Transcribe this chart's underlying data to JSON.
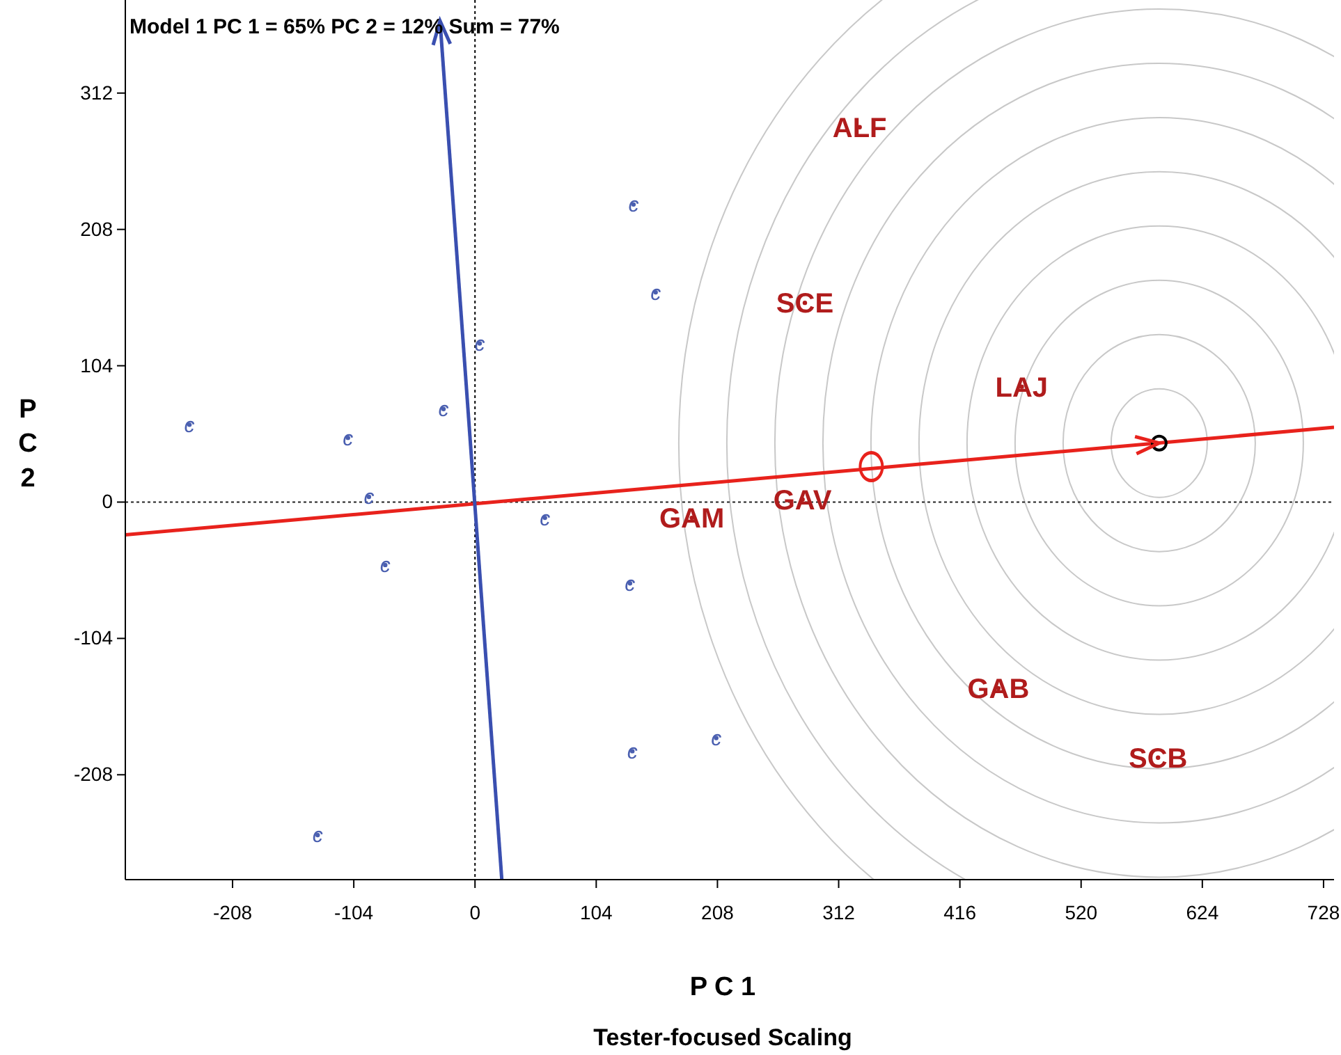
{
  "chart_data": {
    "type": "scatter",
    "title": "Model 1 PC 1 = 65% PC 2 = 12% Sum = 77%",
    "xlabel": "P C 1",
    "ylabel": "P C 2",
    "annotations": [
      "Tester-focused Scaling"
    ],
    "xlim": [
      -300,
      737
    ],
    "ylim": [
      -288,
      383
    ],
    "xticks": [
      -208,
      -104,
      0,
      104,
      208,
      312,
      416,
      520,
      624,
      728
    ],
    "yticks": [
      -208,
      -104,
      0,
      104,
      208,
      312
    ],
    "grid": false,
    "ref_lines": [
      {
        "axis": "x",
        "value": 0,
        "color": "#000000",
        "line_style": "dotted"
      },
      {
        "axis": "y",
        "value": 0,
        "color": "#222222",
        "line_style": "dotted"
      }
    ],
    "series": [
      {
        "type": "line",
        "color": "#e8221c",
        "x": [
          -300,
          737
        ],
        "values": [
          -25,
          57
        ],
        "marker": "none",
        "line_style": "solid"
      },
      {
        "type": "line",
        "color": "#3a4fb0",
        "x": [
          -30,
          23
        ],
        "values": [
          367,
          -288
        ],
        "marker": "none",
        "line_style": "solid"
      },
      {
        "color": "#4a5fb0",
        "marker": "circle",
        "x": [
          -245,
          -109,
          -91,
          -77,
          -135,
          -27,
          4,
          60,
          136,
          155,
          133,
          135,
          207
        ],
        "values": [
          59,
          49,
          4,
          -48,
          -254,
          71,
          121,
          -12,
          227,
          160,
          -62,
          -190,
          -180
        ],
        "value_labels": [
          "c",
          "c",
          "c",
          "c",
          "c",
          "c",
          "c",
          "c",
          "c",
          "c",
          "c",
          "c",
          "c"
        ]
      },
      {
        "color": "#b01c1c",
        "marker": "circle",
        "x": [
          330,
          283,
          469,
          281,
          186,
          449,
          586
        ],
        "values": [
          286,
          152,
          88,
          2,
          -12,
          -142,
          -195
        ],
        "value_labels": [
          "ALF",
          "SCE",
          "LAJ",
          "GAV",
          "GAM",
          "GAB",
          "SCB"
        ]
      },
      {
        "color": "#e8221c",
        "marker": "circle",
        "x": [
          340
        ],
        "values": [
          27
        ]
      },
      {
        "color": "#000000",
        "marker": "circle",
        "x": [
          587
        ],
        "values": [
          45
        ]
      }
    ]
  }
}
